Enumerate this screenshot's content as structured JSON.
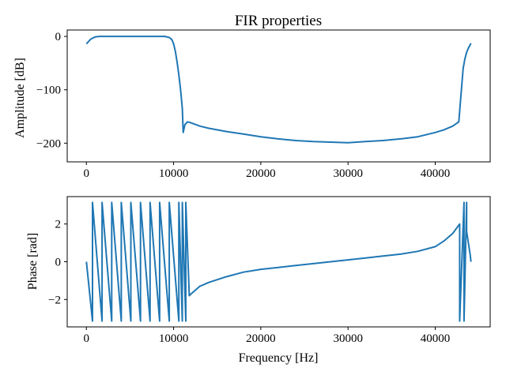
{
  "chart_data": [
    {
      "type": "line",
      "title": "FIR properties",
      "xlabel": "",
      "ylabel": "Amplitude [dB]",
      "xlim": [
        -2200,
        46300
      ],
      "ylim": [
        -235,
        12
      ],
      "xticks": [
        0,
        10000,
        20000,
        30000,
        40000
      ],
      "yticks": [
        0,
        -100,
        -200
      ],
      "xtick_labels": [
        "0",
        "10000",
        "20000",
        "30000",
        "40000"
      ],
      "ytick_labels": [
        "0",
        "−100",
        "−200"
      ],
      "grid": false,
      "series": [
        {
          "color": "#1f77b4",
          "x": [
            0,
            500,
            1000,
            1500,
            2000,
            3000,
            4000,
            5000,
            6000,
            7000,
            8000,
            9000,
            9500,
            9800,
            10000,
            10200,
            10400,
            10600,
            10800,
            11000,
            11100,
            11300,
            11600,
            12000,
            13000,
            14000,
            16000,
            18000,
            20000,
            22000,
            24000,
            26000,
            28000,
            30000,
            32000,
            34000,
            36000,
            38000,
            40000,
            41000,
            42000,
            42700,
            43000,
            43200,
            43400,
            43600,
            43800,
            44000,
            44100
          ],
          "y": [
            -14,
            -5,
            -1,
            0,
            0,
            0,
            0,
            0,
            0,
            0,
            0,
            0,
            -2,
            -6,
            -14,
            -28,
            -48,
            -72,
            -100,
            -135,
            -180,
            -165,
            -160,
            -162,
            -168,
            -172,
            -178,
            -183,
            -188,
            -192,
            -195,
            -197,
            -198,
            -199,
            -197,
            -195,
            -192,
            -188,
            -180,
            -175,
            -168,
            -160,
            -100,
            -60,
            -42,
            -30,
            -22,
            -16,
            -13
          ]
        }
      ]
    },
    {
      "type": "line",
      "title": "",
      "xlabel": "Frequency [Hz]",
      "ylabel": "Phase [rad]",
      "xlim": [
        -2200,
        46300
      ],
      "ylim": [
        -3.45,
        3.45
      ],
      "xticks": [
        0,
        10000,
        20000,
        30000,
        40000
      ],
      "yticks": [
        2,
        0,
        -2
      ],
      "xtick_labels": [
        "0",
        "10000",
        "20000",
        "30000",
        "40000"
      ],
      "ytick_labels": [
        "2",
        "0",
        "−2"
      ],
      "grid": false,
      "series": [
        {
          "color": "#1f77b4",
          "x": [
            0,
            700,
            700,
            1800,
            1800,
            2900,
            2900,
            4000,
            4000,
            5100,
            5100,
            6200,
            6200,
            7300,
            7300,
            8400,
            8400,
            9500,
            9500,
            10600,
            10600,
            11000,
            11000,
            11400,
            11400,
            11800,
            12000,
            13000,
            14000,
            16000,
            18000,
            20000,
            22000,
            24000,
            26000,
            28000,
            30000,
            32000,
            34000,
            36000,
            38000,
            40000,
            41000,
            42000,
            42800,
            42800,
            43300,
            43300,
            43600,
            43600,
            44000,
            44100
          ],
          "y": [
            0,
            -3.14,
            3.14,
            -3.14,
            3.14,
            -3.14,
            3.14,
            -3.14,
            3.14,
            -3.14,
            3.14,
            -3.14,
            3.14,
            -3.14,
            3.14,
            -3.14,
            3.14,
            -3.14,
            3.14,
            -3.14,
            3.14,
            -3.14,
            3.14,
            -3.14,
            3.14,
            -1.8,
            -1.7,
            -1.3,
            -1.1,
            -0.8,
            -0.55,
            -0.4,
            -0.3,
            -0.2,
            -0.1,
            0.0,
            0.1,
            0.2,
            0.3,
            0.4,
            0.55,
            0.8,
            1.1,
            1.5,
            2.0,
            -3.14,
            3.14,
            -3.14,
            3.14,
            1.6,
            0.4,
            0
          ]
        }
      ]
    }
  ]
}
